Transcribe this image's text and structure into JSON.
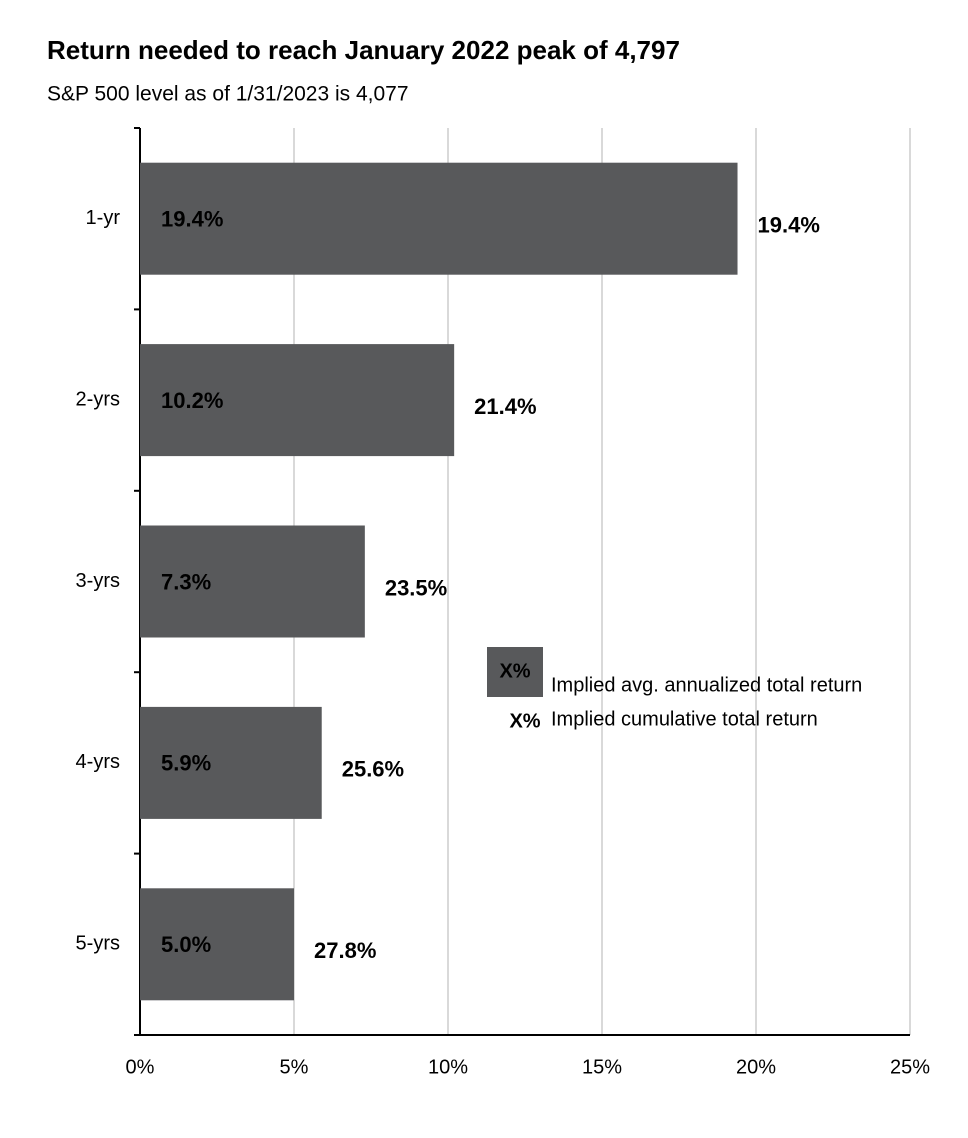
{
  "chart_data": {
    "type": "bar",
    "orientation": "horizontal",
    "title": "Return needed to reach January 2022 peak of 4,797",
    "subtitle": "S&P 500 level as of 1/31/2023 is 4,077",
    "categories": [
      "1-yr",
      "2-yrs",
      "3-yrs",
      "4-yrs",
      "5-yrs"
    ],
    "legend_symbol": "X%",
    "series": [
      {
        "name": "Implied avg. annualized total return",
        "color": "#58595b",
        "values": [
          19.4,
          10.2,
          7.3,
          5.9,
          5.0
        ],
        "value_labels": [
          "19.4%",
          "10.2%",
          "7.3%",
          "5.9%",
          "5.0%"
        ]
      },
      {
        "name": "Implied cumulative total return",
        "color": "#77a33b",
        "values": [
          19.4,
          21.4,
          23.5,
          25.6,
          27.8
        ],
        "value_labels": [
          "19.4%",
          "21.4%",
          "23.5%",
          "25.6%",
          "27.8%"
        ]
      }
    ],
    "xlim": [
      0,
      25
    ],
    "xticks": [
      {
        "value": 0,
        "label": "0%"
      },
      {
        "value": 5,
        "label": "5%"
      },
      {
        "value": 10,
        "label": "10%"
      },
      {
        "value": 15,
        "label": "15%"
      },
      {
        "value": 20,
        "label": "20%"
      },
      {
        "value": 25,
        "label": "25%"
      }
    ],
    "grid": true
  }
}
